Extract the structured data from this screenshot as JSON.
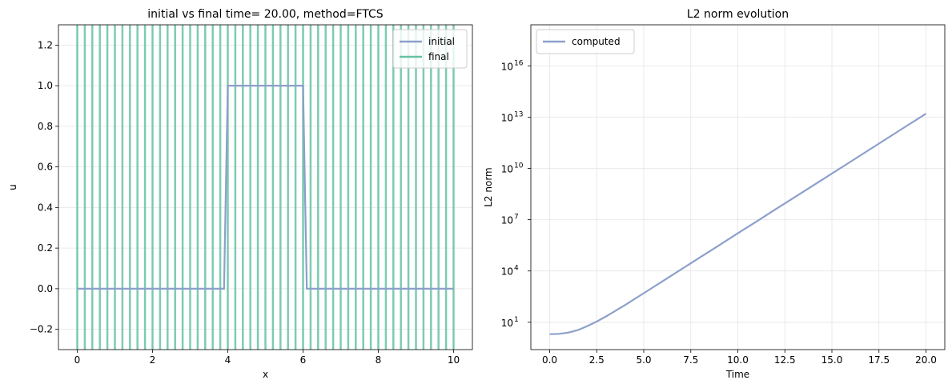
{
  "chart_data": [
    {
      "type": "line",
      "title": "initial vs final time= 20.00, method=FTCS",
      "xlabel": "x",
      "ylabel": "u",
      "xlim": [
        -0.5,
        10.5
      ],
      "ylim": [
        -0.3,
        1.3
      ],
      "xticks": [
        0,
        2,
        4,
        6,
        8,
        10
      ],
      "xtick_labels": [
        "0",
        "2",
        "4",
        "6",
        "8",
        "10"
      ],
      "yticks": [
        -0.2,
        0.0,
        0.2,
        0.4,
        0.6,
        0.8,
        1.0,
        1.2
      ],
      "ytick_labels": [
        "−0.2",
        "0.0",
        "0.2",
        "0.4",
        "0.6",
        "0.8",
        "1.0",
        "1.2"
      ],
      "grid": true,
      "legend_position": "top-right",
      "series": [
        {
          "name": "initial",
          "color": "#8da0cb",
          "x": [
            0,
            3.9,
            4.0,
            6.0,
            6.1,
            10
          ],
          "values": [
            0,
            0,
            1,
            1,
            0,
            0
          ]
        },
        {
          "name": "final",
          "color": "#66c2a5",
          "description_style": "oscillating",
          "x": [
            0.0,
            0.2,
            0.4,
            0.6,
            0.8,
            1.0,
            1.2,
            1.4,
            1.6,
            1.8,
            2.0,
            2.2,
            2.4,
            2.6,
            2.8,
            3.0,
            3.2,
            3.4,
            3.6,
            3.8,
            4.0,
            4.2,
            4.4,
            4.6,
            4.8,
            5.0,
            5.2,
            5.4,
            5.6,
            5.8,
            6.0,
            6.2,
            6.4,
            6.6,
            6.8,
            7.0,
            7.2,
            7.4,
            7.6,
            7.8,
            8.0,
            8.2,
            8.4,
            8.6,
            8.8,
            9.0,
            9.2,
            9.4,
            9.6,
            9.8,
            10.0
          ]
        }
      ]
    },
    {
      "type": "line",
      "title": "L2 norm evolution",
      "xlabel": "Time",
      "ylabel": "L2 norm",
      "xlim": [
        -1.0,
        21.0
      ],
      "ylim_log10": [
        -0.6,
        18.4
      ],
      "y_scale": "log",
      "xticks": [
        0.0,
        2.5,
        5.0,
        7.5,
        10.0,
        12.5,
        15.0,
        17.5,
        20.0
      ],
      "xtick_labels": [
        "0.0",
        "2.5",
        "5.0",
        "7.5",
        "10.0",
        "12.5",
        "15.0",
        "17.5",
        "20.0"
      ],
      "yticks_exp": [
        1,
        4,
        7,
        10,
        13,
        16
      ],
      "ytick_base": "10",
      "grid": true,
      "legend_position": "top-left",
      "series": [
        {
          "name": "computed",
          "color": "#8da0cb",
          "x": [
            0.0,
            0.5,
            1.0,
            1.5,
            2.0,
            2.5,
            3.0,
            4.0,
            5.0,
            6.0,
            7.0,
            8.0,
            9.0,
            10.0,
            11.0,
            12.0,
            13.0,
            14.0,
            15.0,
            16.0,
            17.0,
            18.0,
            19.0,
            20.0
          ],
          "values": [
            2.0,
            2.1,
            2.5,
            3.5,
            6.0,
            11.0,
            22.0,
            100.0,
            500.0,
            2500.0,
            12600.0,
            63000.0,
            316000.0,
            1600000.0,
            7900000.0,
            40000000.0,
            200000000.0,
            1000000000.0,
            5000000000.0,
            25000000000.0,
            126000000000.0,
            630000000000.0,
            3200000000000.0,
            15800000000000.0
          ]
        }
      ]
    }
  ]
}
